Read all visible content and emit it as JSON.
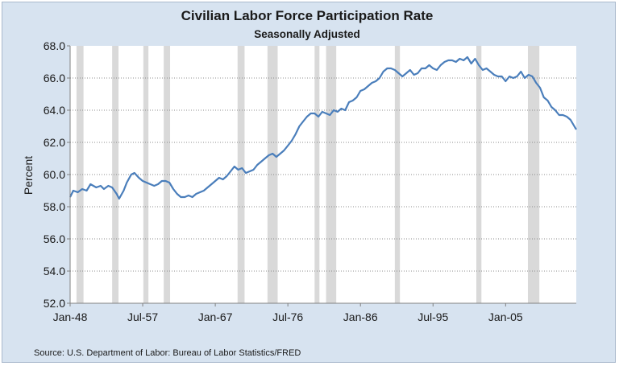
{
  "chart_data": {
    "type": "line",
    "title": "Civilian Labor Force Participation Rate",
    "subtitle": "Seasonally Adjusted",
    "ylabel": "Percent",
    "xlabel": "",
    "source": "Source: U.S. Department of Labor: Bureau of Labor Statistics/FRED",
    "ylim": [
      52.0,
      68.0
    ],
    "yticks": [
      "52.0",
      "54.0",
      "56.0",
      "58.0",
      "60.0",
      "62.0",
      "64.0",
      "66.0",
      "68.0"
    ],
    "xlim": [
      "1948-01",
      "2014-04"
    ],
    "xticks": [
      {
        "label": "Jan-48",
        "date": "1948-01"
      },
      {
        "label": "Jul-57",
        "date": "1957-07"
      },
      {
        "label": "Jan-67",
        "date": "1967-01"
      },
      {
        "label": "Jul-76",
        "date": "1976-07"
      },
      {
        "label": "Jan-86",
        "date": "1986-01"
      },
      {
        "label": "Jul-95",
        "date": "1995-07"
      },
      {
        "label": "Jan-05",
        "date": "2005-01"
      }
    ],
    "grid": "horizontal dotted",
    "recessions": [
      {
        "start": "1948-11",
        "end": "1949-10"
      },
      {
        "start": "1953-07",
        "end": "1954-05"
      },
      {
        "start": "1957-08",
        "end": "1958-04"
      },
      {
        "start": "1960-04",
        "end": "1961-02"
      },
      {
        "start": "1969-12",
        "end": "1970-11"
      },
      {
        "start": "1973-11",
        "end": "1975-03"
      },
      {
        "start": "1980-01",
        "end": "1980-07"
      },
      {
        "start": "1981-07",
        "end": "1982-11"
      },
      {
        "start": "1990-07",
        "end": "1991-03"
      },
      {
        "start": "2001-03",
        "end": "2001-11"
      },
      {
        "start": "2007-12",
        "end": "2009-06"
      }
    ],
    "series": [
      {
        "color": "#4a7ebb",
        "points": [
          [
            "1948-01",
            58.6
          ],
          [
            "1948-06",
            59.0
          ],
          [
            "1949-01",
            58.9
          ],
          [
            "1949-08",
            59.1
          ],
          [
            "1950-03",
            59.0
          ],
          [
            "1950-09",
            59.4
          ],
          [
            "1951-06",
            59.2
          ],
          [
            "1952-01",
            59.3
          ],
          [
            "1952-06",
            59.1
          ],
          [
            "1953-01",
            59.3
          ],
          [
            "1953-07",
            59.2
          ],
          [
            "1954-02",
            58.8
          ],
          [
            "1954-06",
            58.5
          ],
          [
            "1955-01",
            59.0
          ],
          [
            "1955-06",
            59.5
          ],
          [
            "1956-01",
            60.0
          ],
          [
            "1956-06",
            60.1
          ],
          [
            "1957-01",
            59.8
          ],
          [
            "1957-07",
            59.6
          ],
          [
            "1958-01",
            59.5
          ],
          [
            "1958-07",
            59.4
          ],
          [
            "1959-01",
            59.3
          ],
          [
            "1959-07",
            59.4
          ],
          [
            "1960-01",
            59.6
          ],
          [
            "1960-07",
            59.6
          ],
          [
            "1961-01",
            59.5
          ],
          [
            "1961-07",
            59.1
          ],
          [
            "1962-01",
            58.8
          ],
          [
            "1962-07",
            58.6
          ],
          [
            "1963-01",
            58.6
          ],
          [
            "1963-07",
            58.7
          ],
          [
            "1964-01",
            58.6
          ],
          [
            "1964-07",
            58.8
          ],
          [
            "1965-01",
            58.9
          ],
          [
            "1965-07",
            59.0
          ],
          [
            "1966-01",
            59.2
          ],
          [
            "1966-07",
            59.4
          ],
          [
            "1967-01",
            59.6
          ],
          [
            "1967-07",
            59.8
          ],
          [
            "1968-01",
            59.7
          ],
          [
            "1968-07",
            59.9
          ],
          [
            "1969-01",
            60.2
          ],
          [
            "1969-07",
            60.5
          ],
          [
            "1970-01",
            60.3
          ],
          [
            "1970-07",
            60.4
          ],
          [
            "1971-01",
            60.1
          ],
          [
            "1971-07",
            60.2
          ],
          [
            "1972-01",
            60.3
          ],
          [
            "1972-07",
            60.6
          ],
          [
            "1973-01",
            60.8
          ],
          [
            "1973-07",
            61.0
          ],
          [
            "1974-01",
            61.2
          ],
          [
            "1974-07",
            61.3
          ],
          [
            "1975-01",
            61.1
          ],
          [
            "1975-07",
            61.3
          ],
          [
            "1976-01",
            61.5
          ],
          [
            "1976-07",
            61.8
          ],
          [
            "1977-01",
            62.1
          ],
          [
            "1977-07",
            62.5
          ],
          [
            "1978-01",
            63.0
          ],
          [
            "1978-07",
            63.3
          ],
          [
            "1979-01",
            63.6
          ],
          [
            "1979-07",
            63.8
          ],
          [
            "1980-01",
            63.8
          ],
          [
            "1980-07",
            63.6
          ],
          [
            "1981-01",
            63.9
          ],
          [
            "1981-07",
            63.8
          ],
          [
            "1982-01",
            63.7
          ],
          [
            "1982-07",
            64.0
          ],
          [
            "1983-01",
            63.9
          ],
          [
            "1983-07",
            64.1
          ],
          [
            "1984-01",
            64.0
          ],
          [
            "1984-07",
            64.5
          ],
          [
            "1985-01",
            64.6
          ],
          [
            "1985-07",
            64.8
          ],
          [
            "1986-01",
            65.2
          ],
          [
            "1986-07",
            65.3
          ],
          [
            "1987-01",
            65.5
          ],
          [
            "1987-07",
            65.7
          ],
          [
            "1988-01",
            65.8
          ],
          [
            "1988-07",
            66.0
          ],
          [
            "1989-01",
            66.4
          ],
          [
            "1989-07",
            66.6
          ],
          [
            "1990-01",
            66.6
          ],
          [
            "1990-07",
            66.5
          ],
          [
            "1991-01",
            66.3
          ],
          [
            "1991-07",
            66.1
          ],
          [
            "1992-01",
            66.3
          ],
          [
            "1992-07",
            66.5
          ],
          [
            "1993-01",
            66.2
          ],
          [
            "1993-07",
            66.3
          ],
          [
            "1994-01",
            66.6
          ],
          [
            "1994-07",
            66.6
          ],
          [
            "1995-01",
            66.8
          ],
          [
            "1995-07",
            66.6
          ],
          [
            "1996-01",
            66.5
          ],
          [
            "1996-07",
            66.8
          ],
          [
            "1997-01",
            67.0
          ],
          [
            "1997-07",
            67.1
          ],
          [
            "1998-01",
            67.1
          ],
          [
            "1998-07",
            67.0
          ],
          [
            "1999-01",
            67.2
          ],
          [
            "1999-07",
            67.1
          ],
          [
            "2000-01",
            67.3
          ],
          [
            "2000-07",
            66.9
          ],
          [
            "2001-01",
            67.2
          ],
          [
            "2001-07",
            66.8
          ],
          [
            "2002-01",
            66.5
          ],
          [
            "2002-07",
            66.6
          ],
          [
            "2003-01",
            66.4
          ],
          [
            "2003-07",
            66.2
          ],
          [
            "2004-01",
            66.1
          ],
          [
            "2004-07",
            66.1
          ],
          [
            "2005-01",
            65.8
          ],
          [
            "2005-07",
            66.1
          ],
          [
            "2006-01",
            66.0
          ],
          [
            "2006-07",
            66.1
          ],
          [
            "2007-01",
            66.4
          ],
          [
            "2007-07",
            66.0
          ],
          [
            "2008-01",
            66.2
          ],
          [
            "2008-07",
            66.1
          ],
          [
            "2009-01",
            65.7
          ],
          [
            "2009-07",
            65.4
          ],
          [
            "2010-01",
            64.8
          ],
          [
            "2010-07",
            64.6
          ],
          [
            "2011-01",
            64.2
          ],
          [
            "2011-07",
            64.0
          ],
          [
            "2012-01",
            63.7
          ],
          [
            "2012-07",
            63.7
          ],
          [
            "2013-01",
            63.6
          ],
          [
            "2013-07",
            63.4
          ],
          [
            "2014-01",
            63.0
          ],
          [
            "2014-04",
            62.8
          ]
        ]
      }
    ]
  }
}
